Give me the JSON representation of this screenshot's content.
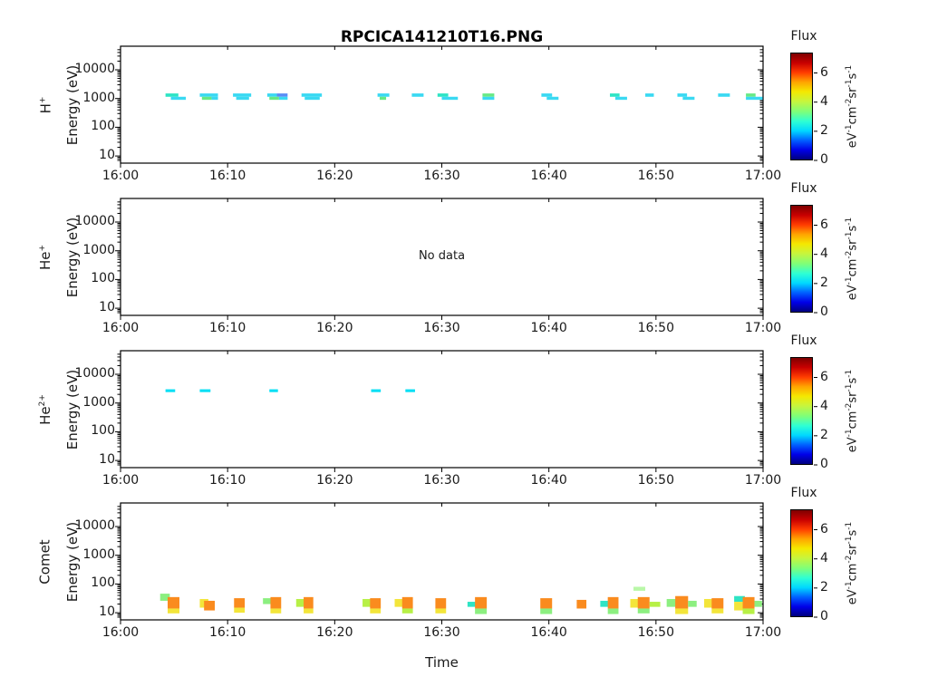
{
  "title": "RPCICA141210T16.PNG",
  "xlabel": "Time",
  "chart_data": {
    "type": "heatmap",
    "description": "Four stacked ion energy-time spectrogram panels",
    "x_axis": {
      "label": "Time",
      "tick_minutes": [
        0,
        10,
        20,
        30,
        40,
        50,
        60
      ],
      "tick_labels": [
        "16:00",
        "16:10",
        "16:20",
        "16:30",
        "16:40",
        "16:50",
        "17:00"
      ]
    },
    "y_axis": {
      "label": "Energy (eV)",
      "scale": "log",
      "tick_values": [
        10,
        100,
        1000,
        10000
      ],
      "tick_labels": [
        "10",
        "100",
        "1000",
        "10000"
      ],
      "ylim": [
        5.6,
        66000
      ]
    },
    "colorbar": {
      "label": "Flux",
      "tick_values": [
        0,
        2,
        4,
        6
      ],
      "tick_labels": [
        "0",
        "2",
        "4",
        "6"
      ],
      "range": [
        0,
        7.4
      ],
      "units_parts": [
        [
          "eV",
          "-1"
        ],
        [
          "cm",
          "-2"
        ],
        [
          "sr",
          "-1"
        ],
        [
          "s",
          "-1"
        ]
      ],
      "gradient_stops": [
        "#00007f",
        "#0000e8",
        "#0060ff",
        "#00d8ff",
        "#2effd4",
        "#7dff7a",
        "#c8f53c",
        "#f5e800",
        "#ffa400",
        "#ff3c00",
        "#c80000",
        "#7f0000"
      ]
    },
    "panels": [
      {
        "species_base": "H",
        "species_sup": "+",
        "no_data": false,
        "marks": [
          [
            4.2,
            5.4,
            1150,
            1500,
            "#2ee4c4"
          ],
          [
            4.7,
            6.1,
            900,
            1150,
            "#3ad9f2"
          ],
          [
            7.4,
            9.1,
            1150,
            1500,
            "#3ad9f2"
          ],
          [
            7.6,
            8.5,
            900,
            1150,
            "#67e985"
          ],
          [
            8.5,
            9.1,
            900,
            1150,
            "#3ad9f2"
          ],
          [
            10.5,
            12.2,
            1150,
            1500,
            "#3ad9f2"
          ],
          [
            10.8,
            12.0,
            900,
            1150,
            "#3ad9f2"
          ],
          [
            13.7,
            14.6,
            1150,
            1500,
            "#3ad9f2"
          ],
          [
            14.6,
            15.6,
            1150,
            1500,
            "#5b8df5"
          ],
          [
            13.9,
            14.8,
            900,
            1150,
            "#67e985"
          ],
          [
            14.8,
            15.6,
            900,
            1150,
            "#3ad9f2"
          ],
          [
            16.9,
            18.8,
            1150,
            1500,
            "#3ad9f2"
          ],
          [
            17.2,
            18.6,
            900,
            1150,
            "#3ad9f2"
          ],
          [
            24.0,
            25.1,
            1150,
            1500,
            "#3ad9f2"
          ],
          [
            24.2,
            24.8,
            900,
            1150,
            "#67e985"
          ],
          [
            27.2,
            28.3,
            1150,
            1500,
            "#3ad9f2"
          ],
          [
            29.6,
            30.6,
            1150,
            1500,
            "#2ee4c4"
          ],
          [
            30.0,
            31.5,
            900,
            1150,
            "#3ad9f2"
          ],
          [
            33.8,
            34.9,
            1150,
            1500,
            "#67e985"
          ],
          [
            33.8,
            34.9,
            900,
            1150,
            "#3ad9f2"
          ],
          [
            39.3,
            40.3,
            1150,
            1500,
            "#3ad9f2"
          ],
          [
            39.8,
            40.9,
            900,
            1150,
            "#3ad9f2"
          ],
          [
            45.7,
            46.6,
            1150,
            1500,
            "#2ee4c4"
          ],
          [
            46.2,
            47.3,
            900,
            1150,
            "#3ad9f2"
          ],
          [
            49.0,
            49.8,
            1150,
            1500,
            "#3ad9f2"
          ],
          [
            52.0,
            52.9,
            1150,
            1500,
            "#3ad9f2"
          ],
          [
            52.5,
            53.6,
            900,
            1150,
            "#3ad9f2"
          ],
          [
            55.8,
            56.9,
            1150,
            1500,
            "#3ad9f2"
          ],
          [
            58.4,
            59.3,
            1150,
            1500,
            "#67e985"
          ],
          [
            58.4,
            60.0,
            900,
            1150,
            "#3ad9f2"
          ]
        ]
      },
      {
        "species_base": "He",
        "species_sup": "+",
        "no_data": true,
        "no_data_label": "No data",
        "marks": []
      },
      {
        "species_base": "He",
        "species_sup": "2+",
        "no_data": false,
        "marks": [
          [
            4.2,
            5.1,
            2400,
            3000,
            "#00dff5"
          ],
          [
            7.4,
            8.4,
            2400,
            3000,
            "#00dff5"
          ],
          [
            13.9,
            14.7,
            2400,
            3000,
            "#00dff5"
          ],
          [
            23.4,
            24.3,
            2400,
            3000,
            "#00dff5"
          ],
          [
            26.6,
            27.5,
            2400,
            3000,
            "#00dff5"
          ]
        ]
      },
      {
        "species_base": "Comet",
        "species_sup": "",
        "no_data": false,
        "marks": [
          [
            3.7,
            4.6,
            26,
            46,
            "#8cef80"
          ],
          [
            4.4,
            5.5,
            14,
            35,
            "#fa8b1e"
          ],
          [
            4.4,
            5.5,
            9.5,
            14,
            "#f3e53a"
          ],
          [
            7.4,
            8.2,
            15,
            30,
            "#f3e53a"
          ],
          [
            7.8,
            8.8,
            12,
            26,
            "#fa8b1e"
          ],
          [
            10.6,
            11.6,
            15,
            32,
            "#fa8b1e"
          ],
          [
            10.6,
            11.6,
            10,
            15,
            "#f3e53a"
          ],
          [
            13.3,
            14.1,
            20,
            32,
            "#8cef80"
          ],
          [
            14.0,
            15.0,
            14,
            35,
            "#fa8b1e"
          ],
          [
            14.0,
            15.0,
            9.5,
            14,
            "#f3e53a"
          ],
          [
            16.4,
            17.3,
            16,
            30,
            "#b7f046"
          ],
          [
            17.1,
            18.0,
            14,
            35,
            "#fa8b1e"
          ],
          [
            17.1,
            18.0,
            9.5,
            14,
            "#f3e53a"
          ],
          [
            22.6,
            23.5,
            16,
            30,
            "#b7f046"
          ],
          [
            23.3,
            24.3,
            14,
            32,
            "#fa8b1e"
          ],
          [
            23.3,
            24.3,
            9.5,
            14,
            "#f3e53a"
          ],
          [
            25.6,
            26.4,
            16,
            30,
            "#f3e53a"
          ],
          [
            26.3,
            27.3,
            14,
            35,
            "#fa8b1e"
          ],
          [
            26.3,
            27.3,
            9.5,
            14,
            "#b7f046"
          ],
          [
            29.4,
            30.4,
            14,
            32,
            "#fa8b1e"
          ],
          [
            29.4,
            30.4,
            9.5,
            14,
            "#f3e53a"
          ],
          [
            32.4,
            33.3,
            16,
            24,
            "#2ee4c4"
          ],
          [
            33.1,
            34.2,
            14,
            35,
            "#fa8b1e"
          ],
          [
            33.1,
            34.2,
            9,
            14,
            "#8cef80"
          ],
          [
            39.2,
            40.3,
            14,
            32,
            "#fa8b1e"
          ],
          [
            39.2,
            40.3,
            9,
            14,
            "#8cef80"
          ],
          [
            42.6,
            43.5,
            14,
            28,
            "#fa8b1e"
          ],
          [
            44.8,
            45.7,
            16,
            26,
            "#2ee4c4"
          ],
          [
            45.5,
            46.5,
            14,
            35,
            "#fa8b1e"
          ],
          [
            45.5,
            46.5,
            9,
            14,
            "#8cef80"
          ],
          [
            47.6,
            48.5,
            15,
            30,
            "#f3e53a"
          ],
          [
            48.3,
            49.4,
            14,
            35,
            "#fa8b1e"
          ],
          [
            48.3,
            49.4,
            9.5,
            14,
            "#8cef80"
          ],
          [
            49.4,
            50.4,
            16,
            24,
            "#b7f046"
          ],
          [
            47.9,
            49.0,
            58,
            80,
            "#b9f7a8"
          ],
          [
            51.0,
            52.0,
            16,
            30,
            "#8cef80"
          ],
          [
            51.8,
            53.0,
            14,
            38,
            "#fa8b1e"
          ],
          [
            51.8,
            53.0,
            9,
            14,
            "#f3e53a"
          ],
          [
            53.0,
            53.8,
            16,
            26,
            "#8cef80"
          ],
          [
            54.5,
            55.4,
            15,
            30,
            "#f3e53a"
          ],
          [
            55.2,
            56.3,
            14,
            32,
            "#fa8b1e"
          ],
          [
            55.2,
            56.3,
            9.5,
            14,
            "#f3e53a"
          ],
          [
            57.3,
            58.3,
            24,
            38,
            "#2ee4c4"
          ],
          [
            57.3,
            58.2,
            12,
            24,
            "#f3e53a"
          ],
          [
            58.1,
            59.2,
            14,
            35,
            "#fa8b1e"
          ],
          [
            58.1,
            59.2,
            9,
            14,
            "#b7f046"
          ],
          [
            59.2,
            59.9,
            16,
            26,
            "#8cef80"
          ]
        ]
      }
    ]
  }
}
